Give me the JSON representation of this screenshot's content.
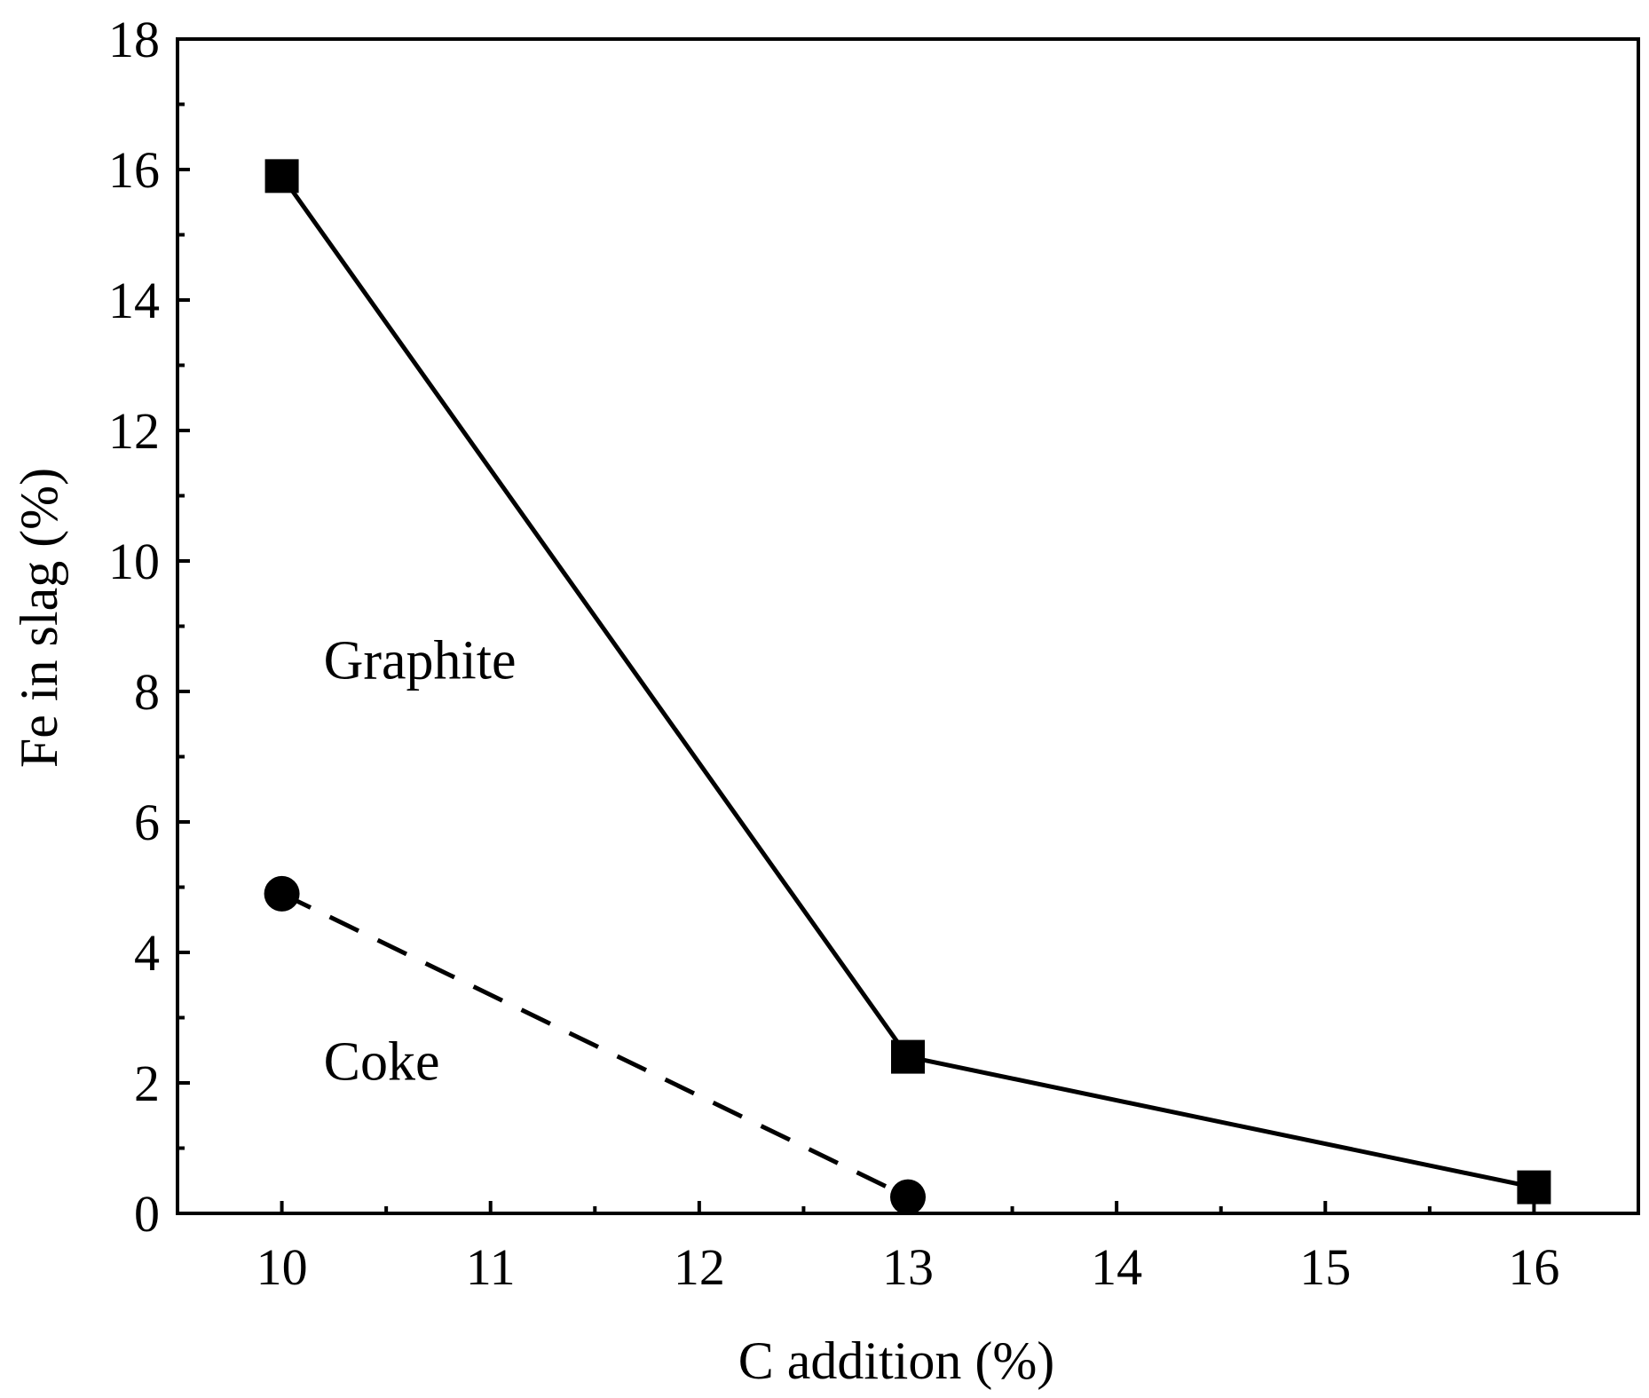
{
  "chart_data": {
    "type": "line",
    "xlabel": "C addition (%)",
    "ylabel": "Fe in slag (%)",
    "xlim": [
      9.5,
      16.5
    ],
    "ylim": [
      0,
      18
    ],
    "xticks": [
      10,
      11,
      12,
      13,
      14,
      15,
      16
    ],
    "yticks": [
      0,
      2,
      4,
      6,
      8,
      10,
      12,
      14,
      16,
      18
    ],
    "grid": false,
    "colors": {
      "series": "#000000",
      "axis": "#000000",
      "background": "#ffffff"
    },
    "series": [
      {
        "marker": "square",
        "line_style": "solid",
        "x": [
          10,
          13,
          16
        ],
        "y": [
          15.9,
          2.4,
          0.4
        ]
      },
      {
        "marker": "circle",
        "line_style": "dashed",
        "x": [
          10,
          13
        ],
        "y": [
          4.9,
          0.25
        ]
      }
    ],
    "annotations": [
      {
        "text": "Graphite",
        "x": 10.2,
        "y": 8.2
      },
      {
        "text": "Coke",
        "x": 10.2,
        "y": 2.05
      }
    ]
  }
}
